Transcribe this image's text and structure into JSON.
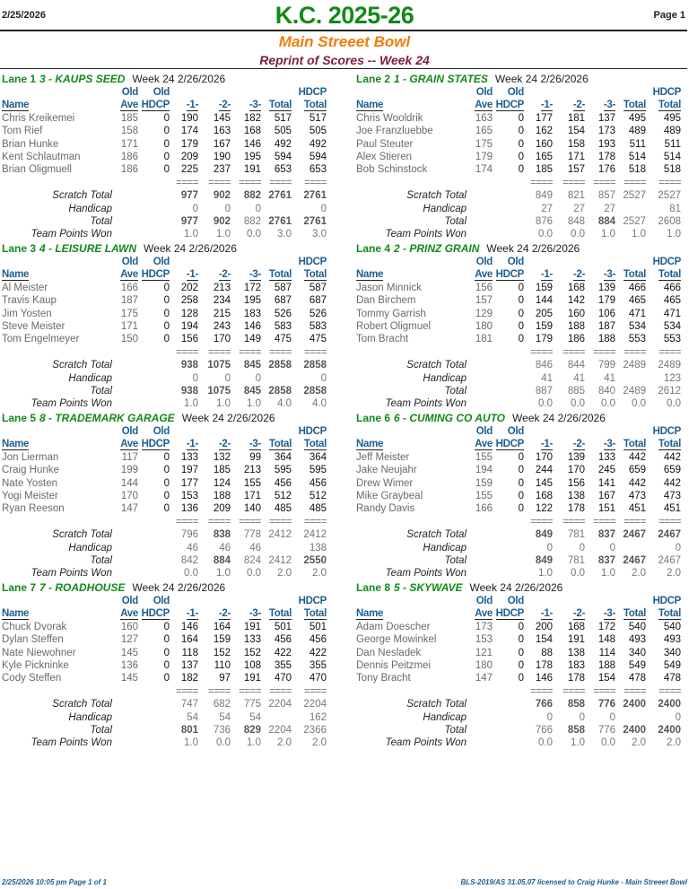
{
  "header": {
    "date": "2/25/2026",
    "page": "Page 1",
    "title": "K.C. 2025-26",
    "center": "Main Streeet Bowl",
    "subtitle": "Reprint of Scores -- Week 24"
  },
  "columns": {
    "old": "Old",
    "ave": "Ave",
    "old_hdcp": "HDCP",
    "name": "Name",
    "g1": "-1-",
    "g2": "-2-",
    "g3": "-3-",
    "total": "Total",
    "hdcp_top": "HDCP",
    "hdcp_total": "Total",
    "sep": "===="
  },
  "labels": {
    "scratch": "Scratch Total",
    "handicap": "Handicap",
    "total": "Total",
    "points": "Team Points Won"
  },
  "lanes": [
    {
      "lane": "Lane 1",
      "team": "3 - KAUPS SEED",
      "week": "Week 24  2/26/2026",
      "players": [
        [
          "Chris Kreikemei",
          "185",
          "0",
          "190",
          "145",
          "182",
          "517",
          "517"
        ],
        [
          "Tom Rief",
          "158",
          "0",
          "174",
          "163",
          "168",
          "505",
          "505"
        ],
        [
          "Brian Hunke",
          "171",
          "0",
          "179",
          "167",
          "146",
          "492",
          "492"
        ],
        [
          "Kent Schlautman",
          "186",
          "0",
          "209",
          "190",
          "195",
          "594",
          "594"
        ],
        [
          "Brian Oligmuell",
          "186",
          "0",
          "225",
          "237",
          "191",
          "653",
          "653"
        ]
      ],
      "scratch": [
        "977",
        "902",
        "882",
        "2761",
        "2761"
      ],
      "scratch_bold": [
        1,
        1,
        1,
        1,
        1
      ],
      "handicap": [
        "0",
        "0",
        "0",
        "",
        "0"
      ],
      "total": [
        "977",
        "902",
        "882",
        "2761",
        "2761"
      ],
      "total_bold": [
        1,
        1,
        0,
        1,
        1
      ],
      "points": [
        "1.0",
        "1.0",
        "0.0",
        "3.0",
        "3.0"
      ]
    },
    {
      "lane": "Lane 2",
      "team": "1 - GRAIN STATES",
      "week": "Week 24  2/26/2026",
      "players": [
        [
          "Chris Wooldrik",
          "163",
          "0",
          "177",
          "181",
          "137",
          "495",
          "495"
        ],
        [
          "Joe Franzluebbe",
          "165",
          "0",
          "162",
          "154",
          "173",
          "489",
          "489"
        ],
        [
          "Paul Steuter",
          "175",
          "0",
          "160",
          "158",
          "193",
          "511",
          "511"
        ],
        [
          "Alex Stieren",
          "179",
          "0",
          "165",
          "171",
          "178",
          "514",
          "514"
        ],
        [
          "Bob Schinstock",
          "174",
          "0",
          "185",
          "157",
          "176",
          "518",
          "518"
        ]
      ],
      "scratch": [
        "849",
        "821",
        "857",
        "2527",
        "2527"
      ],
      "scratch_bold": [
        0,
        0,
        0,
        0,
        0
      ],
      "handicap": [
        "27",
        "27",
        "27",
        "",
        "81"
      ],
      "total": [
        "876",
        "848",
        "884",
        "2527",
        "2608"
      ],
      "total_bold": [
        0,
        0,
        1,
        0,
        0
      ],
      "points": [
        "0.0",
        "0.0",
        "1.0",
        "1.0",
        "1.0"
      ]
    },
    {
      "lane": "Lane 3",
      "team": "4 - LEISURE LAWN",
      "week": "Week 24  2/26/2026",
      "players": [
        [
          "Al Meister",
          "166",
          "0",
          "202",
          "213",
          "172",
          "587",
          "587"
        ],
        [
          "Travis Kaup",
          "187",
          "0",
          "258",
          "234",
          "195",
          "687",
          "687"
        ],
        [
          "Jim Yosten",
          "175",
          "0",
          "128",
          "215",
          "183",
          "526",
          "526"
        ],
        [
          "Steve Meister",
          "171",
          "0",
          "194",
          "243",
          "146",
          "583",
          "583"
        ],
        [
          "Tom Engelmeyer",
          "150",
          "0",
          "156",
          "170",
          "149",
          "475",
          "475"
        ]
      ],
      "scratch": [
        "938",
        "1075",
        "845",
        "2858",
        "2858"
      ],
      "scratch_bold": [
        1,
        1,
        1,
        1,
        1
      ],
      "handicap": [
        "0",
        "0",
        "0",
        "",
        "0"
      ],
      "total": [
        "938",
        "1075",
        "845",
        "2858",
        "2858"
      ],
      "total_bold": [
        1,
        1,
        1,
        1,
        1
      ],
      "points": [
        "1.0",
        "1.0",
        "1.0",
        "4.0",
        "4.0"
      ]
    },
    {
      "lane": "Lane 4",
      "team": "2 - PRINZ GRAIN",
      "week": "Week 24  2/26/2026",
      "players": [
        [
          "Jason Minnick",
          "156",
          "0",
          "159",
          "168",
          "139",
          "466",
          "466"
        ],
        [
          "Dan Birchem",
          "157",
          "0",
          "144",
          "142",
          "179",
          "465",
          "465"
        ],
        [
          "Tommy Garrish",
          "129",
          "0",
          "205",
          "160",
          "106",
          "471",
          "471"
        ],
        [
          "Robert Oligmuel",
          "180",
          "0",
          "159",
          "188",
          "187",
          "534",
          "534"
        ],
        [
          "Tom Bracht",
          "181",
          "0",
          "179",
          "186",
          "188",
          "553",
          "553"
        ]
      ],
      "scratch": [
        "846",
        "844",
        "799",
        "2489",
        "2489"
      ],
      "scratch_bold": [
        0,
        0,
        0,
        0,
        0
      ],
      "handicap": [
        "41",
        "41",
        "41",
        "",
        "123"
      ],
      "total": [
        "887",
        "885",
        "840",
        "2489",
        "2612"
      ],
      "total_bold": [
        0,
        0,
        0,
        0,
        0
      ],
      "points": [
        "0.0",
        "0.0",
        "0.0",
        "0.0",
        "0.0"
      ]
    },
    {
      "lane": "Lane 5",
      "team": "8 - TRADEMARK GARAGE",
      "week": "Week 24  2/26/2026",
      "players": [
        [
          "Jon Lierman",
          "117",
          "0",
          "133",
          "132",
          "99",
          "364",
          "364"
        ],
        [
          "Craig Hunke",
          "199",
          "0",
          "197",
          "185",
          "213",
          "595",
          "595"
        ],
        [
          "Nate Yosten",
          "144",
          "0",
          "177",
          "124",
          "155",
          "456",
          "456"
        ],
        [
          "Yogi Meister",
          "170",
          "0",
          "153",
          "188",
          "171",
          "512",
          "512"
        ],
        [
          "Ryan Reeson",
          "147",
          "0",
          "136",
          "209",
          "140",
          "485",
          "485"
        ]
      ],
      "scratch": [
        "796",
        "838",
        "778",
        "2412",
        "2412"
      ],
      "scratch_bold": [
        0,
        1,
        0,
        0,
        0
      ],
      "handicap": [
        "46",
        "46",
        "46",
        "",
        "138"
      ],
      "total": [
        "842",
        "884",
        "824",
        "2412",
        "2550"
      ],
      "total_bold": [
        0,
        1,
        0,
        0,
        1
      ],
      "points": [
        "0.0",
        "1.0",
        "0.0",
        "2.0",
        "2.0"
      ]
    },
    {
      "lane": "Lane 6",
      "team": "6 - CUMING CO  AUTO",
      "week": "Week 24  2/26/2026",
      "players": [
        [
          "Jeff Meister",
          "155",
          "0",
          "170",
          "139",
          "133",
          "442",
          "442"
        ],
        [
          "Jake Neujahr",
          "194",
          "0",
          "244",
          "170",
          "245",
          "659",
          "659"
        ],
        [
          "Drew Wimer",
          "159",
          "0",
          "145",
          "156",
          "141",
          "442",
          "442"
        ],
        [
          "Mike Graybeal",
          "155",
          "0",
          "168",
          "138",
          "167",
          "473",
          "473"
        ],
        [
          "Randy Davis",
          "166",
          "0",
          "122",
          "178",
          "151",
          "451",
          "451"
        ]
      ],
      "scratch": [
        "849",
        "781",
        "837",
        "2467",
        "2467"
      ],
      "scratch_bold": [
        1,
        0,
        1,
        1,
        1
      ],
      "handicap": [
        "0",
        "0",
        "0",
        "",
        "0"
      ],
      "total": [
        "849",
        "781",
        "837",
        "2467",
        "2467"
      ],
      "total_bold": [
        1,
        0,
        1,
        1,
        0
      ],
      "points": [
        "1.0",
        "0.0",
        "1.0",
        "2.0",
        "2.0"
      ]
    },
    {
      "lane": "Lane 7",
      "team": "7 - ROADHOUSE",
      "week": "Week 24  2/26/2026",
      "players": [
        [
          "Chuck Dvorak",
          "160",
          "0",
          "146",
          "164",
          "191",
          "501",
          "501"
        ],
        [
          "Dylan Steffen",
          "127",
          "0",
          "164",
          "159",
          "133",
          "456",
          "456"
        ],
        [
          "Nate Niewohner",
          "145",
          "0",
          "118",
          "152",
          "152",
          "422",
          "422"
        ],
        [
          "Kyle Pickninke",
          "136",
          "0",
          "137",
          "110",
          "108",
          "355",
          "355"
        ],
        [
          "Cody Steffen",
          "145",
          "0",
          "182",
          "97",
          "191",
          "470",
          "470"
        ]
      ],
      "scratch": [
        "747",
        "682",
        "775",
        "2204",
        "2204"
      ],
      "scratch_bold": [
        0,
        0,
        0,
        0,
        0
      ],
      "handicap": [
        "54",
        "54",
        "54",
        "",
        "162"
      ],
      "total": [
        "801",
        "736",
        "829",
        "2204",
        "2366"
      ],
      "total_bold": [
        1,
        0,
        1,
        0,
        0
      ],
      "points": [
        "1.0",
        "0.0",
        "1.0",
        "2.0",
        "2.0"
      ]
    },
    {
      "lane": "Lane 8",
      "team": "5 - SKYWAVE",
      "week": "Week 24  2/26/2026",
      "players": [
        [
          "Adam Doescher",
          "173",
          "0",
          "200",
          "168",
          "172",
          "540",
          "540"
        ],
        [
          "George Mowinkel",
          "153",
          "0",
          "154",
          "191",
          "148",
          "493",
          "493"
        ],
        [
          "Dan Nesladek",
          "121",
          "0",
          "88",
          "138",
          "114",
          "340",
          "340"
        ],
        [
          "Dennis Peitzmei",
          "180",
          "0",
          "178",
          "183",
          "188",
          "549",
          "549"
        ],
        [
          "Tony Bracht",
          "147",
          "0",
          "146",
          "178",
          "154",
          "478",
          "478"
        ]
      ],
      "scratch": [
        "766",
        "858",
        "776",
        "2400",
        "2400"
      ],
      "scratch_bold": [
        1,
        1,
        1,
        1,
        1
      ],
      "handicap": [
        "0",
        "0",
        "0",
        "",
        "0"
      ],
      "total": [
        "766",
        "858",
        "776",
        "2400",
        "2400"
      ],
      "total_bold": [
        0,
        1,
        0,
        1,
        1
      ],
      "points": [
        "0.0",
        "1.0",
        "0.0",
        "2.0",
        "2.0"
      ]
    }
  ],
  "footer": {
    "left": "2/25/2026  10:05 pm  Page 1 of 1",
    "right": "BLS-2019/AS 31.05.07 licensed to Craig Hunke - Main Streeet Bowl"
  }
}
